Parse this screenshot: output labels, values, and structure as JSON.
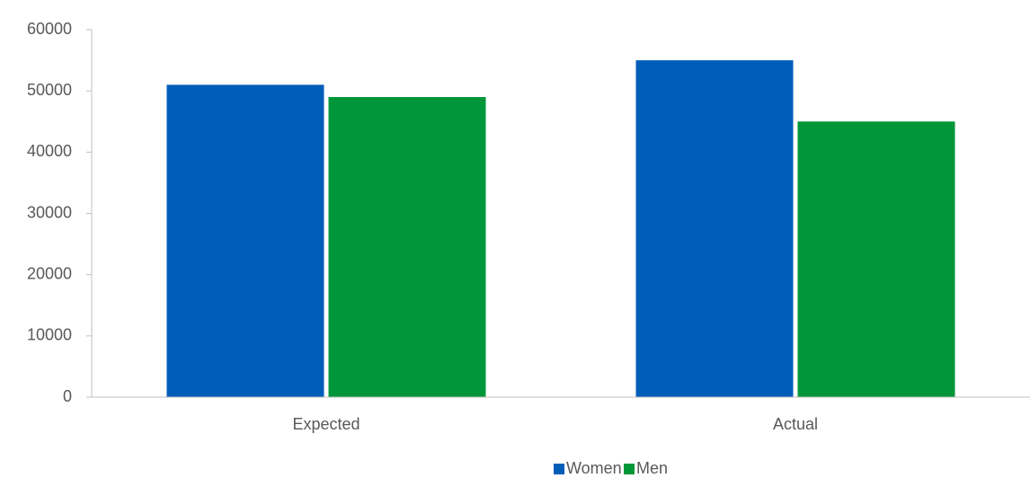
{
  "chart_data": {
    "type": "bar",
    "categories": [
      "Expected",
      "Actual"
    ],
    "series": [
      {
        "name": "Women",
        "color": "#005eb8",
        "values": [
          51000,
          55000
        ]
      },
      {
        "name": "Men",
        "color": "#009639",
        "values": [
          49000,
          45000
        ]
      }
    ],
    "ylim": [
      0,
      60000
    ],
    "yticks": [
      0,
      10000,
      20000,
      30000,
      40000,
      50000,
      60000
    ],
    "legend": "bottom"
  }
}
